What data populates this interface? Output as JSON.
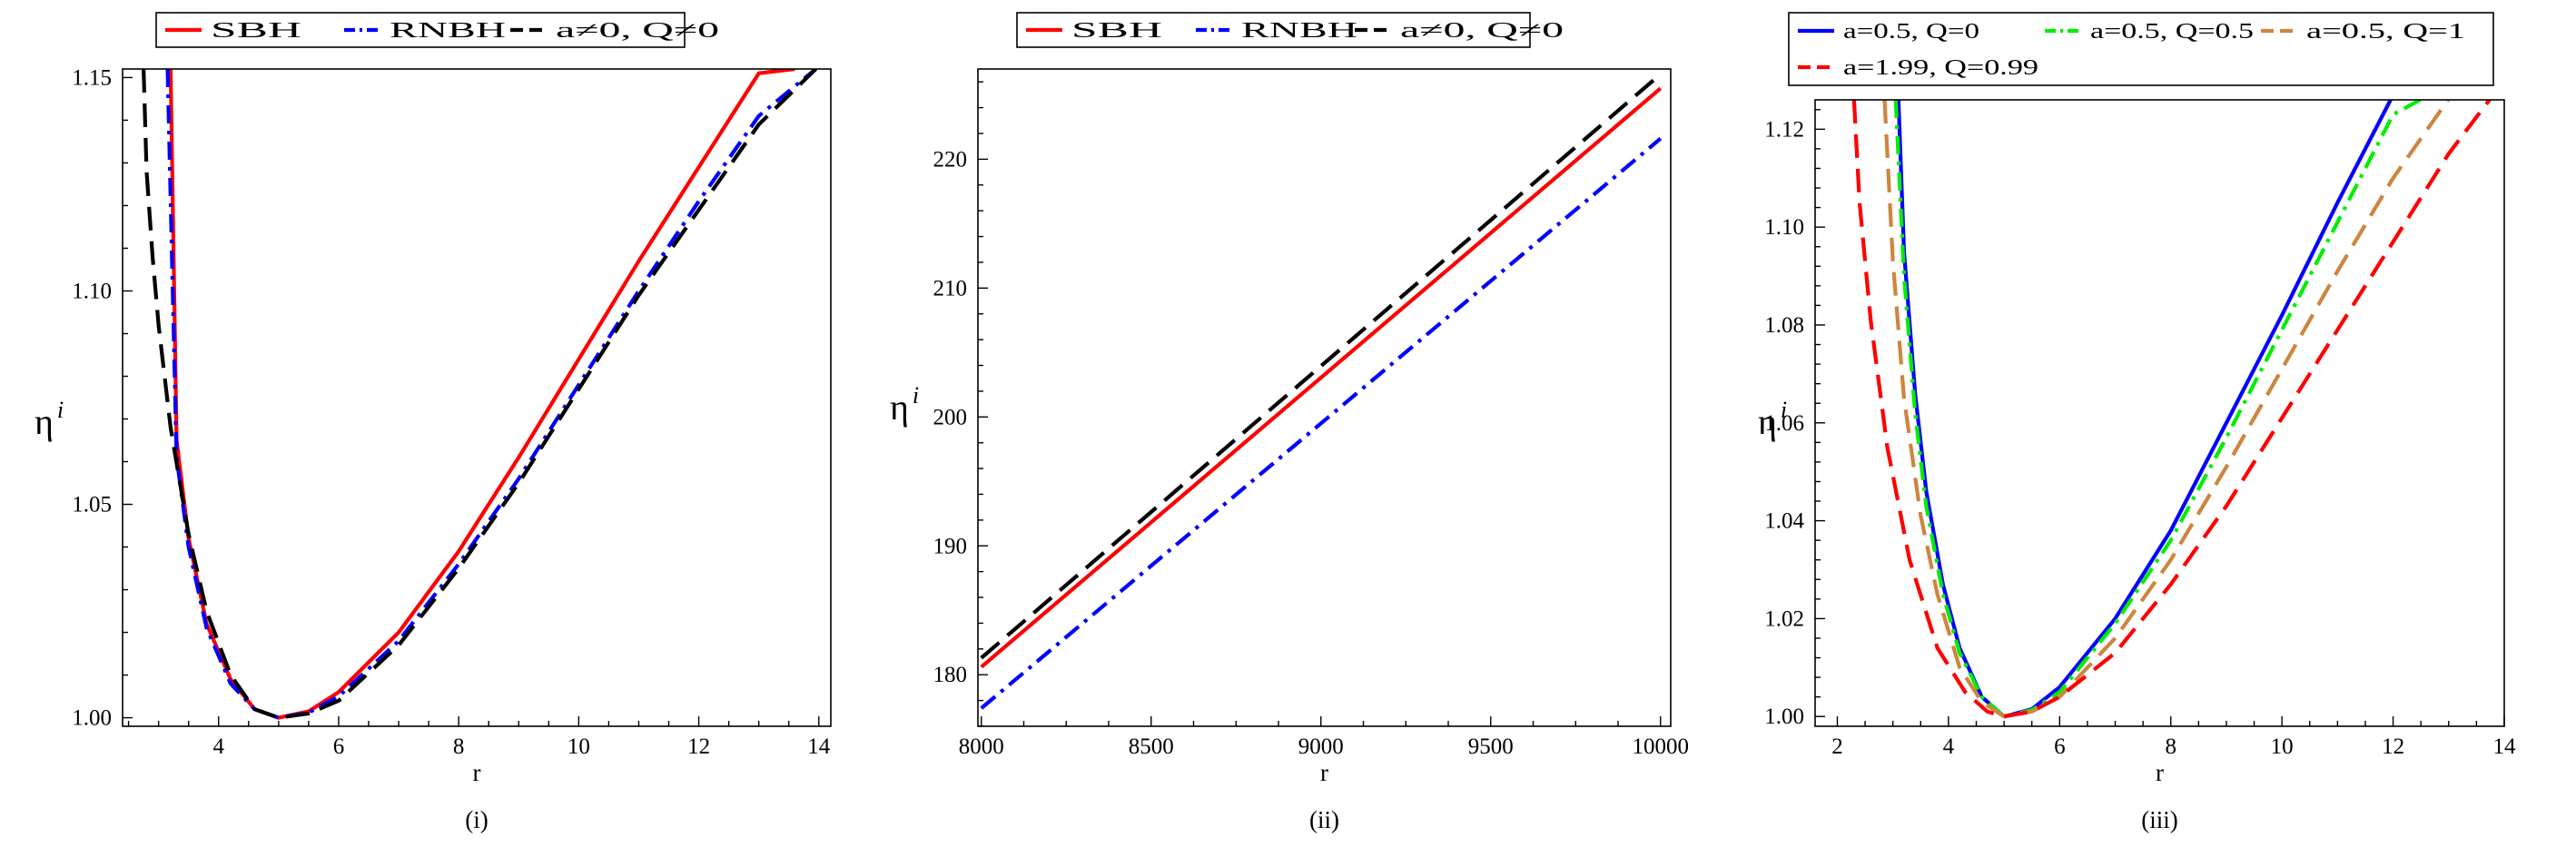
{
  "figure": {
    "background": "#ffffff"
  },
  "chart_data": [
    {
      "type": "line",
      "caption": "(i)",
      "xlabel": "r",
      "ylabel": "η",
      "ylabel_sup": "i",
      "xlim": [
        2.4,
        14.2
      ],
      "ylim": [
        0.998,
        1.152
      ],
      "xticks": [
        4,
        6,
        8,
        10,
        12,
        14
      ],
      "yticks": [
        1.0,
        1.05,
        1.1,
        1.15
      ],
      "ytick_decimals": 2,
      "grid": false,
      "legend": {
        "placement": "top",
        "columns": 3
      },
      "series": [
        {
          "name": "SBH",
          "color": "#ff0000",
          "dash": "solid",
          "z": 1,
          "x": [
            3.2,
            3.3,
            3.5,
            3.8,
            4.2,
            4.6,
            5.0,
            5.5,
            6.0,
            7.0,
            8.0,
            9.0,
            10.0,
            11.0,
            12.0,
            13.0,
            13.6
          ],
          "y": [
            1.152,
            1.065,
            1.042,
            1.022,
            1.009,
            1.002,
            1.0,
            1.0015,
            1.006,
            1.02,
            1.039,
            1.061,
            1.084,
            1.107,
            1.129,
            1.151,
            1.152
          ]
        },
        {
          "name": "RNBH",
          "color": "#0000ff",
          "dash": "dashdot",
          "z": 2,
          "x": [
            3.15,
            3.3,
            3.5,
            3.8,
            4.2,
            4.6,
            5.0,
            5.5,
            6.0,
            7.0,
            8.0,
            9.0,
            10.0,
            11.0,
            12.0,
            13.0,
            13.95
          ],
          "y": [
            1.152,
            1.061,
            1.04,
            1.021,
            1.008,
            1.002,
            1.0,
            1.0012,
            1.005,
            1.018,
            1.036,
            1.056,
            1.078,
            1.1,
            1.121,
            1.141,
            1.152
          ]
        },
        {
          "name": "a≠0, Q≠0",
          "color": "#000000",
          "dash": "longdash",
          "z": 3,
          "x": [
            2.75,
            2.8,
            2.9,
            3.0,
            3.2,
            3.5,
            3.8,
            4.2,
            4.6,
            5.0,
            5.5,
            6.0,
            7.0,
            8.0,
            9.0,
            10.0,
            11.0,
            12.0,
            13.0,
            13.95
          ],
          "y": [
            1.152,
            1.128,
            1.108,
            1.092,
            1.068,
            1.043,
            1.025,
            1.01,
            1.002,
            1.0,
            1.001,
            1.004,
            1.017,
            1.035,
            1.055,
            1.077,
            1.099,
            1.119,
            1.139,
            1.152
          ]
        }
      ]
    },
    {
      "type": "line",
      "caption": "(ii)",
      "xlabel": "r",
      "ylabel": "η",
      "ylabel_sup": "i",
      "xlim": [
        7990,
        10030
      ],
      "ylim": [
        176,
        227
      ],
      "xticks": [
        8000,
        8500,
        9000,
        9500,
        10000
      ],
      "yticks": [
        180,
        190,
        200,
        210,
        220
      ],
      "ytick_decimals": 0,
      "grid": false,
      "legend": {
        "placement": "top",
        "columns": 3
      },
      "series": [
        {
          "name": "SBH",
          "color": "#ff0000",
          "dash": "solid",
          "z": 2,
          "x": [
            8000,
            10000
          ],
          "y": [
            180.6,
            225.5
          ]
        },
        {
          "name": "RNBH",
          "color": "#0000ff",
          "dash": "dashdot",
          "z": 1,
          "x": [
            8000,
            10000
          ],
          "y": [
            177.4,
            221.6
          ]
        },
        {
          "name": "a≠0, Q≠0",
          "color": "#000000",
          "dash": "longdash",
          "z": 3,
          "x": [
            8000,
            10000
          ],
          "y": [
            181.3,
            226.6
          ]
        }
      ]
    },
    {
      "type": "line",
      "caption": "(iii)",
      "xlabel": "r",
      "ylabel": "η",
      "ylabel_sup": "i",
      "xlim": [
        1.6,
        14.0
      ],
      "ylim": [
        0.998,
        1.126
      ],
      "xticks": [
        2,
        4,
        6,
        8,
        10,
        12,
        14
      ],
      "yticks": [
        1.0,
        1.02,
        1.04,
        1.06,
        1.08,
        1.1,
        1.12
      ],
      "ytick_decimals": 2,
      "grid": false,
      "legend": {
        "placement": "top",
        "columns": 3
      },
      "series": [
        {
          "name": "a=0.5, Q=0",
          "color": "#0000ff",
          "dash": "solid",
          "z": 1,
          "x": [
            3.1,
            3.2,
            3.4,
            3.6,
            3.9,
            4.2,
            4.6,
            5.0,
            5.5,
            6.0,
            7.0,
            8.0,
            9.0,
            10.0,
            11.0,
            12.0,
            12.5
          ],
          "y": [
            1.126,
            1.095,
            1.066,
            1.046,
            1.027,
            1.014,
            1.004,
            1.0,
            1.0015,
            1.006,
            1.02,
            1.038,
            1.06,
            1.082,
            1.105,
            1.127,
            1.127
          ]
        },
        {
          "name": "a=0.5, Q=0.5",
          "color": "#00ee00",
          "dash": "dashdot",
          "z": 2,
          "x": [
            3.05,
            3.2,
            3.4,
            3.6,
            3.9,
            4.2,
            4.6,
            5.0,
            5.5,
            6.0,
            7.0,
            8.0,
            9.0,
            10.0,
            11.0,
            12.0,
            12.65
          ],
          "y": [
            1.126,
            1.09,
            1.062,
            1.043,
            1.025,
            1.013,
            1.004,
            1.0,
            1.0013,
            1.005,
            1.019,
            1.036,
            1.057,
            1.079,
            1.101,
            1.123,
            1.127
          ]
        },
        {
          "name": "a=0.5, Q=1",
          "color": "#cd853f",
          "dash": "longdash",
          "z": 3,
          "x": [
            2.85,
            3.0,
            3.2,
            3.5,
            3.8,
            4.2,
            4.6,
            5.0,
            5.5,
            6.0,
            7.0,
            8.0,
            9.0,
            10.0,
            11.0,
            12.0,
            13.05
          ],
          "y": [
            1.126,
            1.093,
            1.065,
            1.041,
            1.025,
            1.01,
            1.003,
            1.0,
            1.001,
            1.004,
            1.016,
            1.032,
            1.051,
            1.071,
            1.091,
            1.11,
            1.127
          ]
        },
        {
          "name": "a=1.99, Q=0.99",
          "color": "#ff0000",
          "dash": "longdash",
          "z": 4,
          "x": [
            2.3,
            2.4,
            2.6,
            2.9,
            3.3,
            3.8,
            4.3,
            4.7,
            5.0,
            5.5,
            6.0,
            7.0,
            8.0,
            9.0,
            10.0,
            11.0,
            12.0,
            13.0,
            13.8
          ],
          "y": [
            1.126,
            1.105,
            1.081,
            1.055,
            1.032,
            1.014,
            1.005,
            1.001,
            1.0,
            1.001,
            1.004,
            1.013,
            1.027,
            1.043,
            1.061,
            1.079,
            1.097,
            1.115,
            1.127
          ]
        }
      ]
    }
  ]
}
